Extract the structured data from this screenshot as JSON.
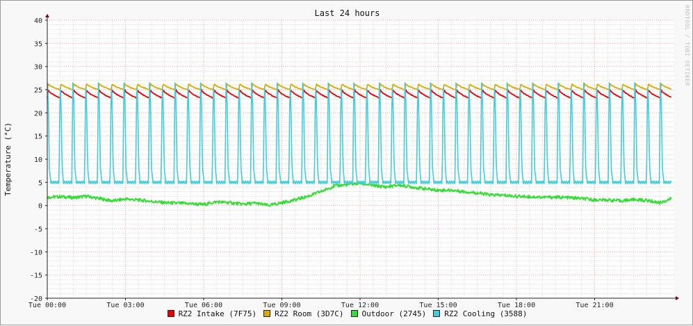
{
  "watermark": "RRDTOOL / TOBI OETIKER",
  "chart_data": {
    "type": "line",
    "title": "Last 24 hours",
    "ylabel": "Temperature (°C)",
    "xlabel": "",
    "ylim": [
      -20,
      40
    ],
    "yticks": [
      -20,
      -15,
      -10,
      -5,
      0,
      5,
      10,
      15,
      20,
      25,
      30,
      35,
      40
    ],
    "xlim_hours": [
      0,
      24.2
    ],
    "xticks": [
      {
        "label": "Tue 00:00",
        "hour": 0
      },
      {
        "label": "Tue 03:00",
        "hour": 3
      },
      {
        "label": "Tue 06:00",
        "hour": 6
      },
      {
        "label": "Tue 09:00",
        "hour": 9
      },
      {
        "label": "Tue 12:00",
        "hour": 12
      },
      {
        "label": "Tue 15:00",
        "hour": 15
      },
      {
        "label": "Tue 18:00",
        "hour": 18
      },
      {
        "label": "Tue 21:00",
        "hour": 21
      }
    ],
    "grid": true,
    "legend_position": "bottom",
    "series": [
      {
        "name": "RZ2 Intake (7F75)",
        "color": "#ee0000",
        "cycle": {
          "period_hours": 0.49,
          "min": 23.2,
          "max": 25.0
        },
        "x": [
          0,
          24
        ],
        "y": [
          24.0,
          24.0
        ]
      },
      {
        "name": "RZ2 Room (3D7C)",
        "color": "#ddaa00",
        "cycle": {
          "period_hours": 0.49,
          "min": 25.0,
          "max": 26.3
        },
        "x": [
          0,
          24
        ],
        "y": [
          25.6,
          25.6
        ]
      },
      {
        "name": "Outdoor (2745)",
        "color": "#33dd33",
        "x": [
          0,
          0.5,
          1,
          1.5,
          2,
          2.5,
          3,
          3.5,
          4,
          4.5,
          5,
          5.5,
          6,
          6.5,
          7,
          7.5,
          8,
          8.5,
          9,
          9.5,
          10,
          10.5,
          11,
          11.5,
          12,
          12.5,
          13,
          13.5,
          14,
          14.5,
          15,
          15.5,
          16,
          16.5,
          17,
          17.5,
          18,
          18.5,
          19,
          19.5,
          20,
          20.5,
          21,
          21.5,
          22,
          22.5,
          23,
          23.5,
          23.95
        ],
        "y": [
          1.8,
          1.9,
          1.7,
          2.0,
          1.5,
          1.0,
          1.4,
          1.2,
          0.9,
          0.6,
          0.5,
          0.4,
          0.2,
          0.8,
          0.6,
          0.3,
          0.5,
          0.0,
          0.6,
          1.2,
          2.0,
          3.0,
          4.2,
          4.5,
          4.8,
          4.3,
          4.0,
          4.4,
          4.0,
          3.6,
          3.3,
          3.3,
          3.0,
          2.7,
          2.3,
          2.2,
          2.0,
          1.9,
          1.8,
          1.8,
          1.7,
          1.5,
          1.2,
          1.2,
          1.0,
          1.3,
          1.1,
          0.6,
          1.5
        ]
      },
      {
        "name": "RZ2 Cooling (3588)",
        "color": "#44ccdd",
        "cycle": {
          "period_hours": 0.49,
          "min": 5.0,
          "max": 26.5
        },
        "x": [
          0,
          24
        ],
        "y": [
          10.0,
          10.0
        ]
      }
    ]
  }
}
